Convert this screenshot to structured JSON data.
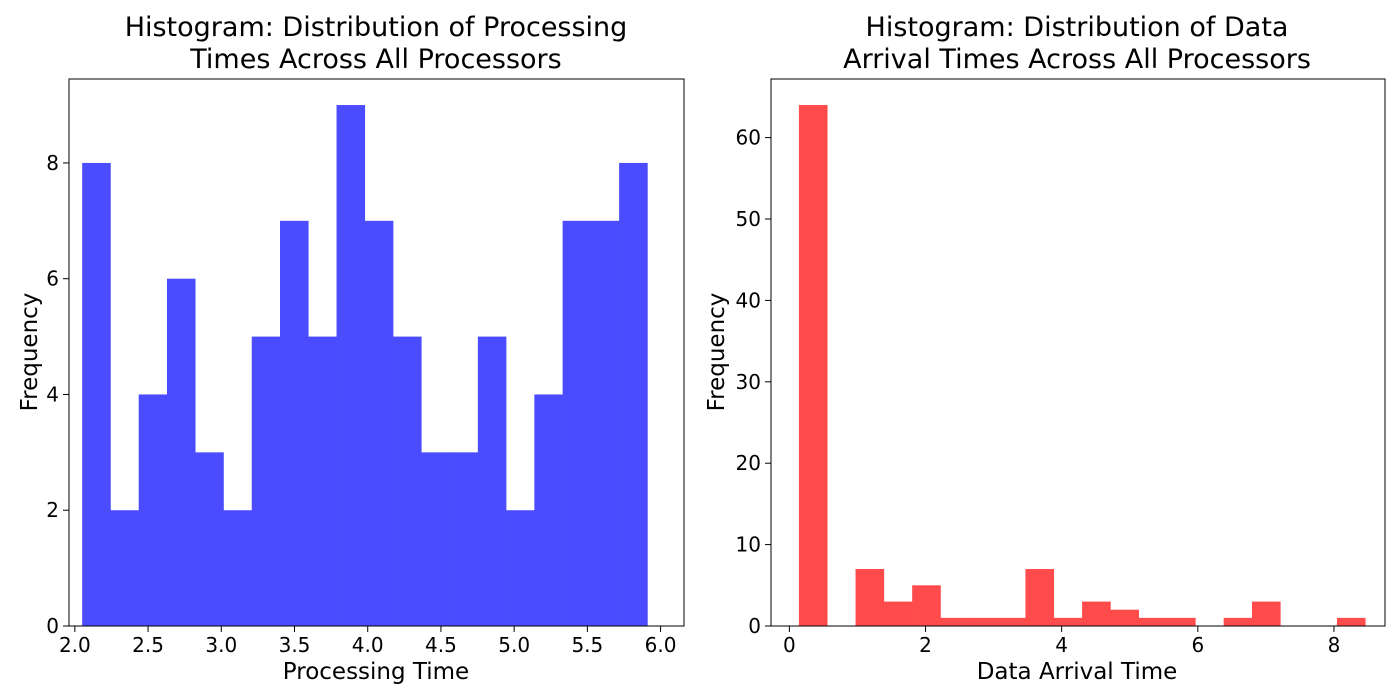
{
  "chart_data": [
    {
      "type": "bar",
      "title_lines": [
        "Histogram: Distribution of Processing",
        "Times Across All Processors"
      ],
      "xlabel": "Processing Time",
      "ylabel": "Frequency",
      "color": "#4b4bff",
      "xlim": [
        1.96,
        6.16
      ],
      "ylim": [
        0,
        9.45
      ],
      "xticks": [
        2.0,
        2.5,
        3.0,
        3.5,
        4.0,
        4.5,
        5.0,
        5.5,
        6.0
      ],
      "xtick_labels": [
        "2.0",
        "2.5",
        "3.0",
        "3.5",
        "4.0",
        "4.5",
        "5.0",
        "5.5",
        "6.0"
      ],
      "yticks": [
        0,
        2,
        4,
        6,
        8
      ],
      "ytick_labels": [
        "0",
        "2",
        "4",
        "6",
        "8"
      ],
      "bin_edges": [
        2.05,
        2.243,
        2.436,
        2.629,
        2.822,
        3.015,
        3.208,
        3.401,
        3.594,
        3.787,
        3.98,
        4.173,
        4.366,
        4.559,
        4.752,
        4.945,
        5.138,
        5.331,
        5.524,
        5.717,
        5.91
      ],
      "values": [
        8,
        2,
        4,
        6,
        3,
        2,
        5,
        7,
        5,
        9,
        7,
        5,
        3,
        3,
        5,
        2,
        4,
        7,
        7,
        8
      ],
      "grid": false
    },
    {
      "type": "bar",
      "title_lines": [
        "Histogram: Distribution of Data",
        "Arrival Times Across All Processors"
      ],
      "xlabel": "Data Arrival Time",
      "ylabel": "Frequency",
      "color": "#ff4b4b",
      "xlim": [
        -0.27,
        8.75
      ],
      "ylim": [
        0,
        67.2
      ],
      "xticks": [
        0,
        2,
        4,
        6,
        8
      ],
      "xtick_labels": [
        "0",
        "2",
        "4",
        "6",
        "8"
      ],
      "yticks": [
        0,
        10,
        20,
        30,
        40,
        50,
        60
      ],
      "ytick_labels": [
        "0",
        "10",
        "20",
        "30",
        "40",
        "50",
        "60"
      ],
      "bin_edges": [
        0.14,
        0.556,
        0.972,
        1.388,
        1.804,
        2.22,
        2.636,
        3.052,
        3.468,
        3.884,
        4.3,
        4.716,
        5.132,
        5.548,
        5.964,
        6.38,
        6.796,
        7.212,
        7.628,
        8.044,
        8.46
      ],
      "values": [
        64,
        0,
        7,
        3,
        5,
        1,
        1,
        1,
        7,
        1,
        3,
        2,
        1,
        1,
        0,
        1,
        3,
        0,
        0,
        1
      ],
      "grid": false
    }
  ]
}
